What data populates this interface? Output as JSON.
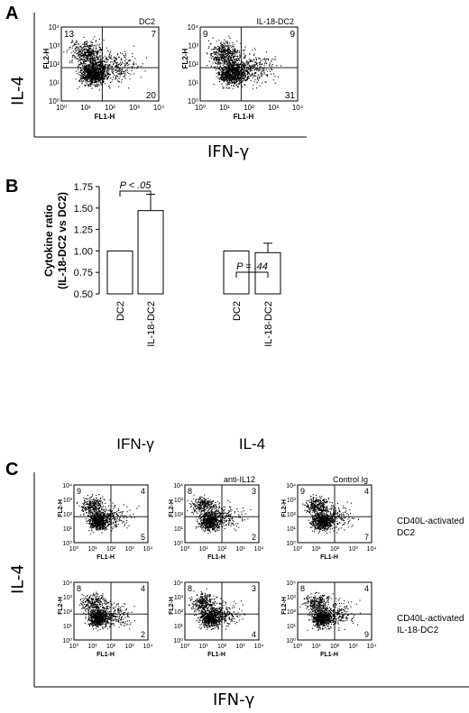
{
  "panelA": {
    "letter": "A",
    "ylabel": "IL-4",
    "xlabel": "IFN-γ",
    "plots": [
      {
        "title": "DC2",
        "quadrants": {
          "ul": "13",
          "ur": "7",
          "lr": "20"
        }
      },
      {
        "title": "IL-18-DC2",
        "quadrants": {
          "ul": "9",
          "ur": "9",
          "lr": "31"
        }
      }
    ],
    "fl2": "FL2-H",
    "fl1": "FL1-H"
  },
  "panelB": {
    "letter": "B",
    "ylabel_line1": "Cytokine ratio",
    "ylabel_line2": "(IL-18-DC2 vs DC2)",
    "groups": [
      "IFN-γ",
      "IL-4"
    ],
    "sig": [
      "P < .05",
      "P = .44"
    ]
  },
  "chart_data": {
    "type": "bar",
    "categories": [
      "DC2",
      "IL-18-DC2",
      "DC2",
      "IL-18-DC2"
    ],
    "groups": [
      "IFN-γ",
      "IFN-γ",
      "IL-4",
      "IL-4"
    ],
    "values": [
      1.0,
      1.47,
      1.0,
      0.98
    ],
    "errors": [
      0,
      0.19,
      0,
      0.11
    ],
    "ylim": [
      0.5,
      1.75
    ],
    "yticks": [
      "0.50",
      "0.75",
      "1.00",
      "1.25",
      "1.50",
      "1.75"
    ],
    "grid": false
  },
  "panelC": {
    "letter": "C",
    "ylabel": "IL-4",
    "xlabel": "IFN-γ",
    "col_titles": [
      "",
      "anti-IL12",
      "Control Ig"
    ],
    "row_labels": [
      {
        "line1": "CD40L-activated",
        "line2": "DC2"
      },
      {
        "line1": "CD40L-activated",
        "line2": "IL-18-DC2"
      }
    ],
    "fl2": "FL2-H",
    "fl1": "FL1-H",
    "plots": [
      {
        "ul": "9",
        "ur": "4",
        "lr": "5"
      },
      {
        "ul": "8",
        "ur": "3",
        "lr": "2"
      },
      {
        "ul": "9",
        "ur": "4",
        "lr": "7"
      },
      {
        "ul": "8",
        "ur": "4",
        "lr": "2"
      },
      {
        "ul": "8",
        "ur": "3",
        "lr": "4"
      },
      {
        "ul": "8",
        "ur": "4",
        "lr": "9"
      }
    ]
  }
}
